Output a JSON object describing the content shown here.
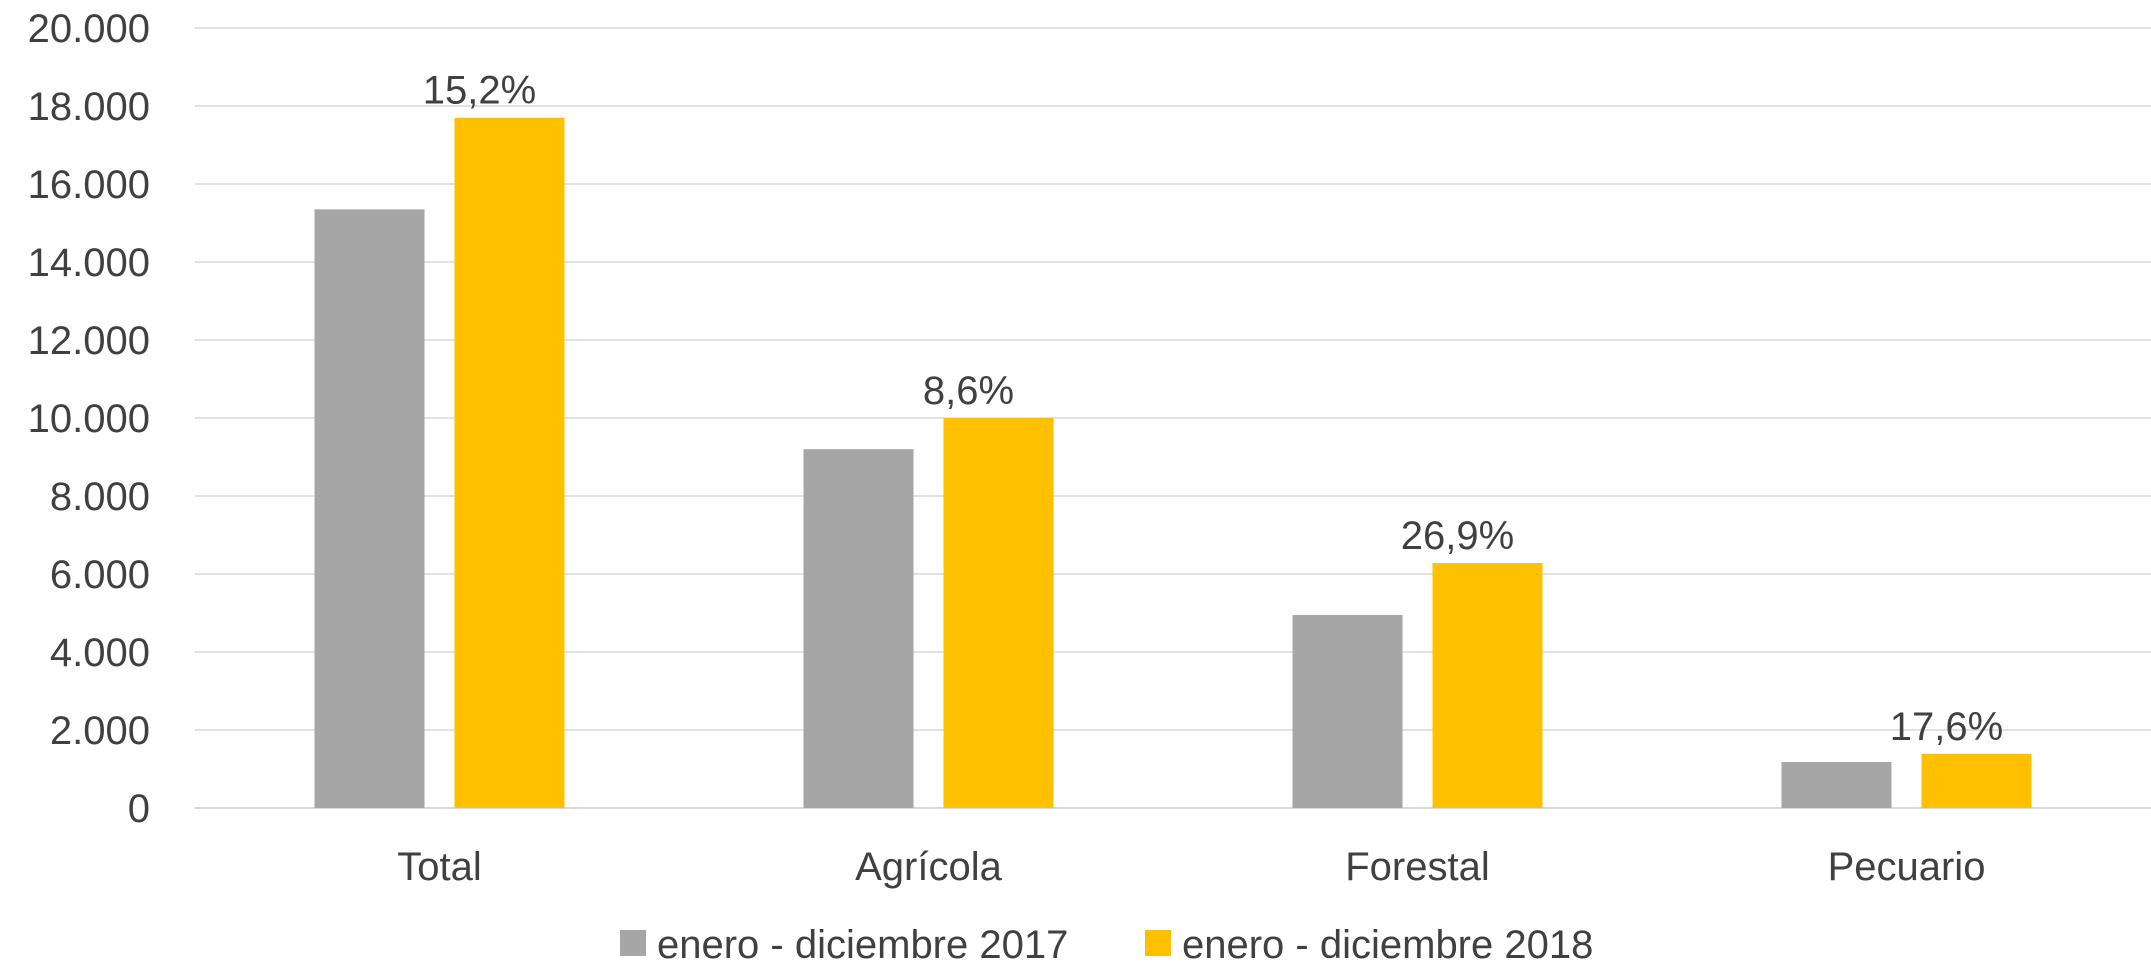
{
  "chart_data": {
    "type": "bar",
    "title": "",
    "xlabel": "",
    "ylabel": "",
    "categories": [
      "Total",
      "Agrícola",
      "Forestal",
      "Pecuario"
    ],
    "series": [
      {
        "name": "enero - diciembre 2017",
        "color": "#A6A6A6",
        "values": [
          15350,
          9200,
          4950,
          1180
        ]
      },
      {
        "name": "enero - diciembre 2018",
        "color": "#FFC000",
        "values": [
          17700,
          10000,
          6280,
          1390
        ]
      }
    ],
    "data_labels": [
      "15,2%",
      "8,6%",
      "26,9%",
      "17,6%"
    ],
    "yticks": [
      "0",
      "2.000",
      "4.000",
      "6.000",
      "8.000",
      "10.000",
      "12.000",
      "14.000",
      "16.000",
      "18.000",
      "20.000"
    ],
    "ylim": [
      0,
      20000
    ],
    "grid": true,
    "legend_position": "bottom"
  }
}
